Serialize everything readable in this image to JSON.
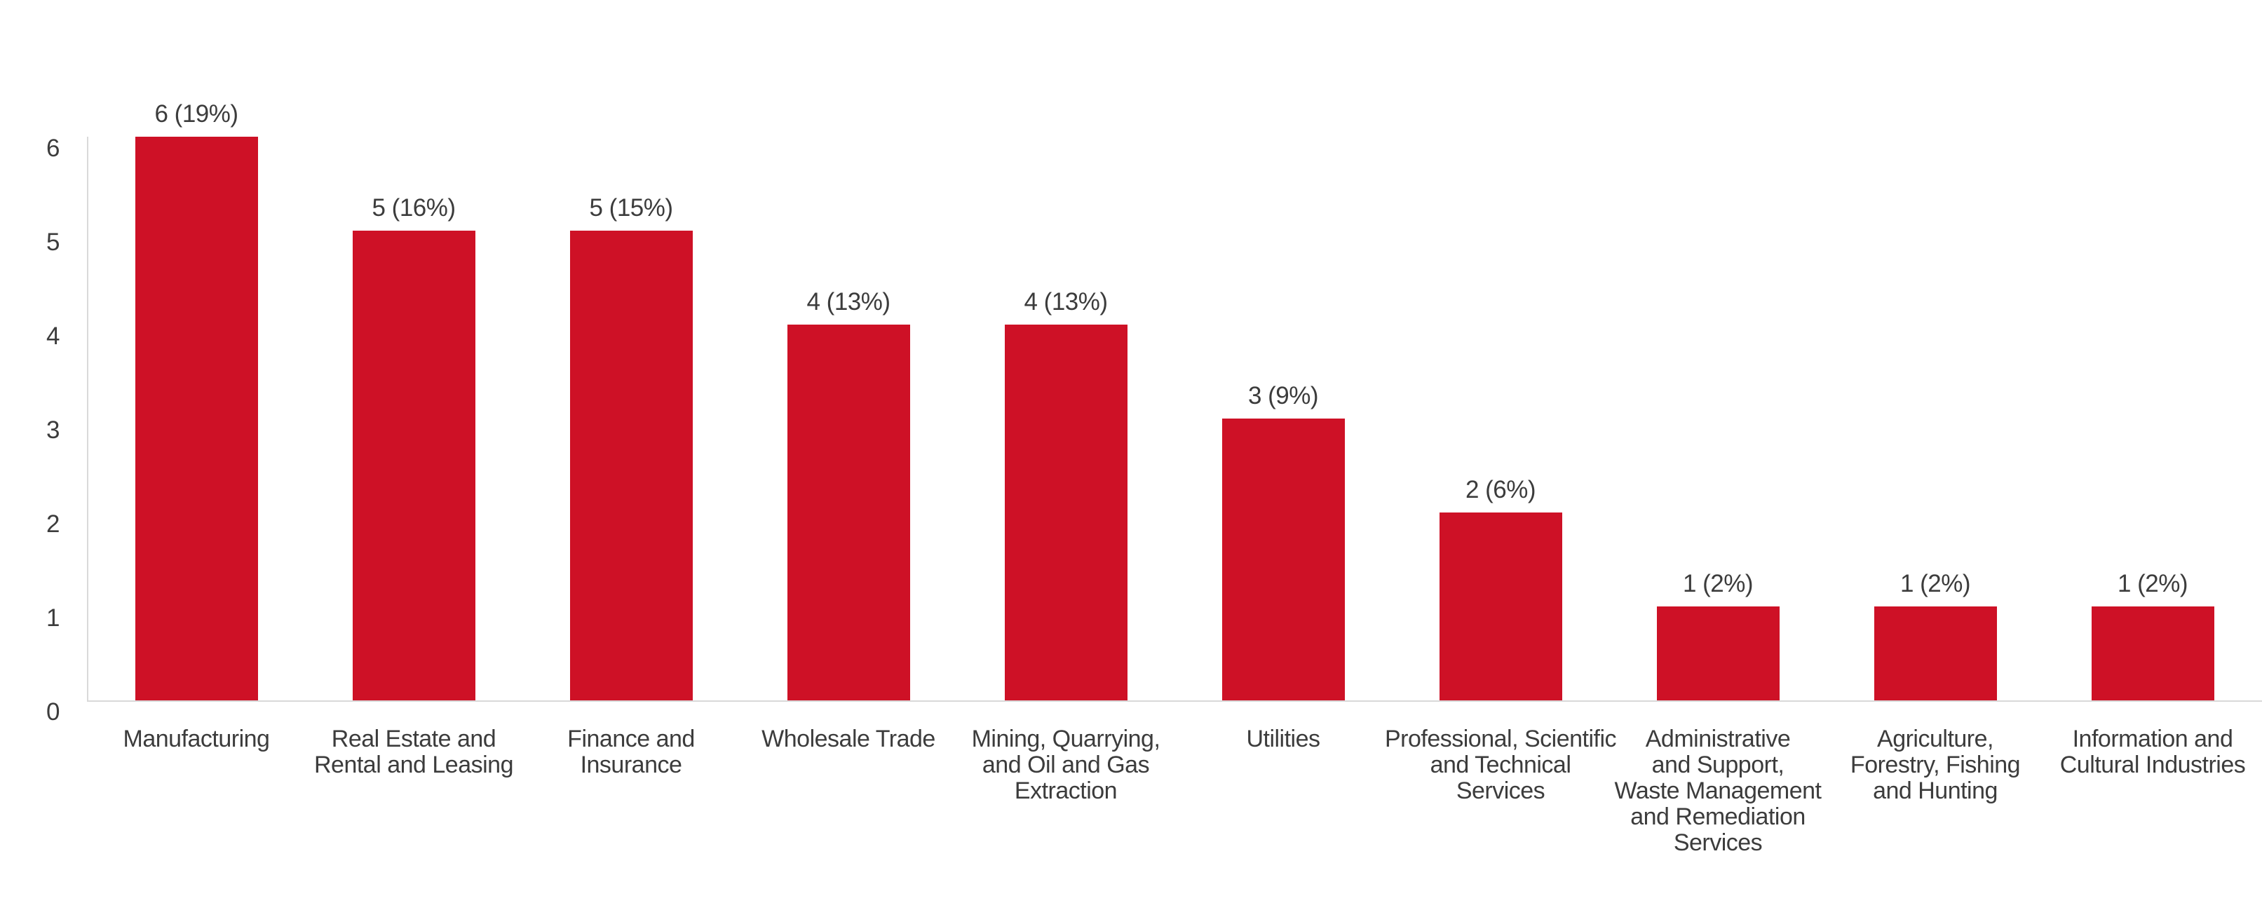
{
  "chart_data": {
    "type": "bar",
    "categories": [
      "Manufacturing",
      "Real Estate and Rental and Leasing",
      "Finance and Insurance",
      "Wholesale Trade",
      "Mining, Quarrying, and Oil and Gas Extraction",
      "Utilities",
      "Professional, Scientific and Technical Services",
      "Administrative and Support, Waste Management and Remediation Services",
      "Agriculture, Forestry, Fishing and Hunting",
      "Information and Cultural Industries"
    ],
    "category_lines": [
      [
        "Manufacturing"
      ],
      [
        "Real Estate and",
        "Rental and Leasing"
      ],
      [
        "Finance and",
        "Insurance"
      ],
      [
        "Wholesale Trade"
      ],
      [
        "Mining, Quarrying,",
        "and Oil and Gas",
        "Extraction"
      ],
      [
        "Utilities"
      ],
      [
        "Professional, Scientific",
        "and Technical",
        "Services"
      ],
      [
        "Administrative",
        "and Support,",
        "Waste Management",
        "and Remediation",
        "Services"
      ],
      [
        "Agriculture,",
        "Forestry, Fishing",
        "and Hunting"
      ],
      [
        "Information and",
        "Cultural Industries"
      ]
    ],
    "values": [
      6,
      5,
      5,
      4,
      4,
      3,
      2,
      1,
      1,
      1
    ],
    "percentages": [
      19,
      16,
      15,
      13,
      13,
      9,
      6,
      2,
      2,
      2
    ],
    "data_labels": [
      "6 (19%)",
      "5 (16%)",
      "5 (15%)",
      "4 (13%)",
      "4 (13%)",
      "3 (9%)",
      "2 (6%)",
      "1 (2%)",
      "1 (2%)",
      "1 (2%)"
    ],
    "yticks": [
      0,
      1,
      2,
      3,
      4,
      5,
      6
    ],
    "ylim": [
      0,
      6
    ],
    "xlabel": "",
    "ylabel": "",
    "grid": false,
    "legend": false,
    "bar_color": "#CE1126",
    "axis_line_color": "#D9D9D9",
    "text_color": "#3C3C3C"
  }
}
